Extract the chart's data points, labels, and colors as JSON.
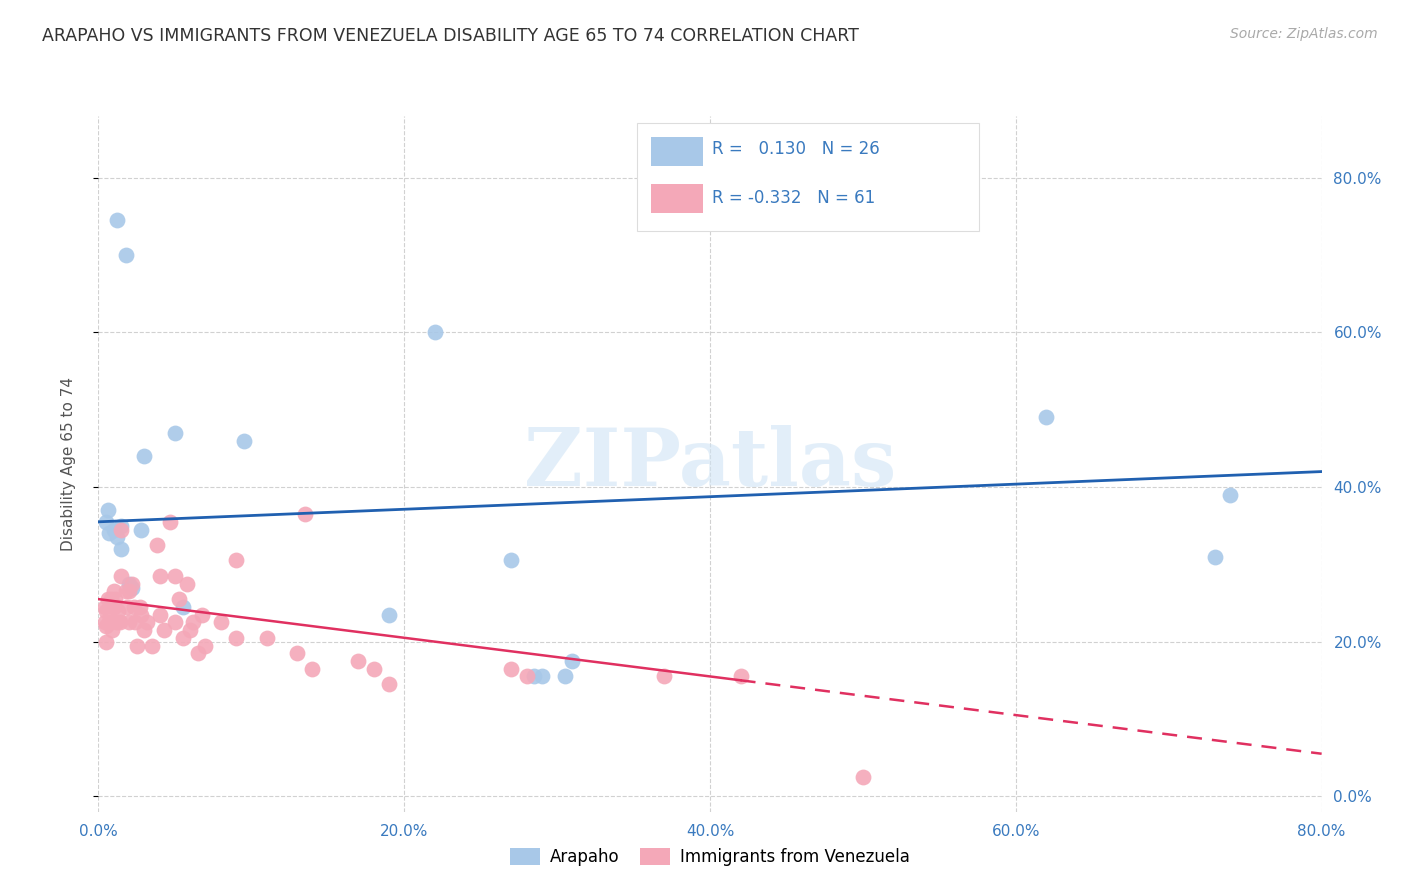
{
  "title": "ARAPAHO VS IMMIGRANTS FROM VENEZUELA DISABILITY AGE 65 TO 74 CORRELATION CHART",
  "source": "Source: ZipAtlas.com",
  "ylabel": "Disability Age 65 to 74",
  "xlim": [
    0,
    0.8
  ],
  "ylim": [
    -0.02,
    0.88
  ],
  "legend1_R": "0.130",
  "legend1_N": "26",
  "legend2_R": "-0.332",
  "legend2_N": "61",
  "arapaho_color": "#a8c8e8",
  "venezuela_color": "#f4a8b8",
  "line1_color": "#2060b0",
  "line2_color": "#e03060",
  "watermark": "ZIPatlas",
  "arapaho_x": [
    0.012,
    0.018,
    0.005,
    0.006,
    0.007,
    0.01,
    0.012,
    0.015,
    0.015,
    0.02,
    0.022,
    0.028,
    0.03,
    0.05,
    0.055,
    0.095,
    0.19,
    0.22,
    0.27,
    0.285,
    0.29,
    0.305,
    0.31,
    0.62,
    0.73,
    0.74
  ],
  "arapaho_y": [
    0.745,
    0.7,
    0.355,
    0.37,
    0.34,
    0.345,
    0.335,
    0.35,
    0.32,
    0.275,
    0.27,
    0.345,
    0.44,
    0.47,
    0.245,
    0.46,
    0.235,
    0.6,
    0.305,
    0.155,
    0.155,
    0.155,
    0.175,
    0.49,
    0.31,
    0.39
  ],
  "venezuela_x": [
    0.004,
    0.004,
    0.005,
    0.005,
    0.005,
    0.006,
    0.007,
    0.008,
    0.008,
    0.009,
    0.01,
    0.01,
    0.011,
    0.012,
    0.013,
    0.014,
    0.015,
    0.015,
    0.018,
    0.019,
    0.02,
    0.02,
    0.022,
    0.023,
    0.024,
    0.025,
    0.027,
    0.028,
    0.03,
    0.032,
    0.035,
    0.038,
    0.04,
    0.04,
    0.043,
    0.047,
    0.05,
    0.05,
    0.053,
    0.055,
    0.058,
    0.06,
    0.062,
    0.065,
    0.068,
    0.07,
    0.08,
    0.09,
    0.09,
    0.11,
    0.13,
    0.135,
    0.14,
    0.17,
    0.18,
    0.19,
    0.27,
    0.28,
    0.37,
    0.42,
    0.5
  ],
  "venezuela_y": [
    0.245,
    0.225,
    0.24,
    0.22,
    0.2,
    0.255,
    0.225,
    0.255,
    0.225,
    0.215,
    0.265,
    0.245,
    0.255,
    0.225,
    0.24,
    0.225,
    0.345,
    0.285,
    0.265,
    0.245,
    0.265,
    0.225,
    0.275,
    0.245,
    0.225,
    0.195,
    0.245,
    0.235,
    0.215,
    0.225,
    0.195,
    0.325,
    0.285,
    0.235,
    0.215,
    0.355,
    0.285,
    0.225,
    0.255,
    0.205,
    0.275,
    0.215,
    0.225,
    0.185,
    0.235,
    0.195,
    0.225,
    0.305,
    0.205,
    0.205,
    0.185,
    0.365,
    0.165,
    0.175,
    0.165,
    0.145,
    0.165,
    0.155,
    0.155,
    0.155,
    0.025
  ]
}
